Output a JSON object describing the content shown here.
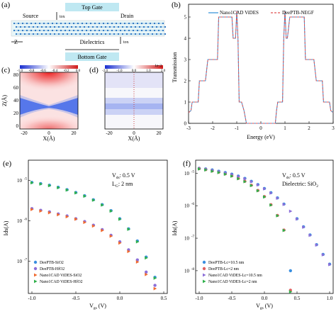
{
  "panels": {
    "a": {
      "label": "(a)",
      "top_gate": "Top Gate",
      "source": "Source",
      "drain": "Drain",
      "tox_top": "tox",
      "z_axis": "Z",
      "dielectrics": "Dielectrics",
      "tox_bottom": "tox",
      "lg": "L",
      "lg_sub": "G",
      "bottom_gate": "Bottom Gate"
    },
    "b": {
      "label": "(b)",
      "legend": [
        "Nano1CAD ViDES",
        "DeePTB-NEGF"
      ],
      "colors": {
        "vides": "#2e8fd8",
        "deeptb": "#e05050"
      },
      "ylabel": "Transmission",
      "xlabel": "Energy (eV)",
      "xticks": [
        "-3",
        "-2",
        "-1",
        "0",
        "1",
        "2",
        "3"
      ],
      "yticks": [
        "0",
        "1",
        "2",
        "3",
        "4",
        "5"
      ]
    },
    "c": {
      "label": "(c)",
      "colorbar_ticks": [
        "-1.0",
        "-0.8",
        "-0.6",
        "-0.4",
        "-0.2",
        "0.0"
      ],
      "ylabel": "Z(Å)",
      "xlabel": "X(Å)",
      "xticks": [
        "-20",
        "0",
        "20"
      ],
      "yticks": [
        "0",
        "20",
        "40",
        "60",
        "80"
      ]
    },
    "d": {
      "label": "(d)",
      "colorbar_ticks": [
        "-2.0",
        "-1.0",
        "0.0",
        "1.0",
        "2.0"
      ],
      "colorbar_exp": "1e-3",
      "xlabel": "X(Å)",
      "xticks": [
        "-20",
        "0",
        "20"
      ]
    },
    "e": {
      "label": "(e)",
      "ann1": "V",
      "ann1_sub": "ds",
      "ann1_val": ": 0.5 V",
      "ann2": "L",
      "ann2_sub": "G",
      "ann2_val": ": 2 nm",
      "ylabel": "Ids(A)",
      "xlabel": "V",
      "xlabel_sub": "gs",
      "xlabel_unit": " (V)",
      "xticks": [
        "-1.0",
        "-0.5",
        "0.0",
        "0.5"
      ],
      "yticks": [
        "10",
        "10",
        "10"
      ],
      "ytick_exps": [
        "-5",
        "-6",
        "-7"
      ],
      "legend": [
        "DeePTB-SiO2",
        "DeePTB-HfO2",
        "Nano1CAD ViDES-SiO2",
        "Nano1CAD ViDES-HfO2"
      ]
    },
    "f": {
      "label": "(f)",
      "ann1": "V",
      "ann1_sub": "ds",
      "ann1_val": ": 0.5 V",
      "ann2": "Dielectric: SiO",
      "ann2_sub": "2",
      "ylabel": "Ids(A)",
      "xlabel": "V",
      "xlabel_sub": "gs",
      "xlabel_unit": " (V)",
      "xticks": [
        "-1.0",
        "-0.5",
        "0.0",
        "0.5",
        "1.0"
      ],
      "yticks": [
        "10",
        "10",
        "10",
        "10"
      ],
      "ytick_exps": [
        "-5",
        "-6",
        "-7",
        "-8"
      ],
      "legend": [
        "DeePTB-Lc=10.5 nm",
        "DeePTB-Lc=2 nm",
        "Nano1CAD ViDES-Lc=10.5 nm",
        "Nano1CAD ViDES-Lc=2 nm"
      ]
    }
  },
  "chart_data": [
    {
      "type": "line",
      "panel": "b",
      "xlabel": "Energy (eV)",
      "ylabel": "Transmission",
      "xlim": [
        -3,
        3
      ],
      "ylim": [
        0,
        5.6
      ],
      "series": [
        {
          "name": "Nano1CAD ViDES",
          "x": [
            -3.0,
            -2.9,
            -2.85,
            -2.8,
            -2.6,
            -2.55,
            -2.3,
            -2.2,
            -1.8,
            -1.75,
            -1.5,
            -1.45,
            -1.2,
            -1.15,
            -1.05,
            -1.0,
            -0.95,
            -0.9,
            -0.8,
            -0.7,
            -0.6,
            0.6,
            0.65,
            0.7,
            0.9,
            0.95,
            1.0,
            1.05,
            1.1,
            1.2,
            1.5,
            1.55,
            1.8,
            1.85,
            2.2,
            2.3,
            2.55,
            2.6,
            2.8,
            2.85,
            2.9,
            3.0
          ],
          "y": [
            0.5,
            0.6,
            1.0,
            1.0,
            1.0,
            2.0,
            2.0,
            3.0,
            3.0,
            5.0,
            5.0,
            5.0,
            5.0,
            4.0,
            4.0,
            5.3,
            4.0,
            1.0,
            1.0,
            0.6,
            0.0,
            0.0,
            0.6,
            1.0,
            1.0,
            4.0,
            5.3,
            4.0,
            4.0,
            5.0,
            5.0,
            5.0,
            5.0,
            3.0,
            3.0,
            2.0,
            2.0,
            1.0,
            1.0,
            1.0,
            0.6,
            0.5
          ]
        },
        {
          "name": "DeePTB-NEGF",
          "x": [
            -3.0,
            -2.9,
            -2.85,
            -2.8,
            -2.6,
            -2.55,
            -2.3,
            -2.2,
            -1.8,
            -1.75,
            -1.5,
            -1.45,
            -1.2,
            -1.15,
            -1.05,
            -1.0,
            -0.95,
            -0.9,
            -0.8,
            -0.7,
            -0.6,
            0.6,
            0.65,
            0.7,
            0.9,
            0.95,
            1.0,
            1.05,
            1.1,
            1.2,
            1.5,
            1.55,
            1.8,
            1.85,
            2.2,
            2.3,
            2.55,
            2.6,
            2.8,
            2.85,
            2.9,
            3.0
          ],
          "y": [
            0.5,
            0.6,
            1.0,
            1.0,
            1.0,
            2.0,
            2.0,
            3.0,
            3.0,
            5.0,
            5.0,
            5.0,
            5.0,
            4.0,
            4.0,
            5.3,
            4.0,
            1.0,
            1.0,
            0.6,
            0.0,
            0.0,
            0.6,
            1.0,
            1.0,
            4.0,
            5.3,
            4.0,
            4.0,
            5.0,
            5.0,
            5.0,
            5.0,
            3.0,
            3.0,
            2.0,
            2.0,
            1.0,
            1.0,
            1.0,
            0.6,
            0.5
          ]
        }
      ]
    },
    {
      "type": "scatter",
      "panel": "e",
      "xlabel": "Vgs (V)",
      "ylabel": "Ids(A)",
      "xlim": [
        -1.0,
        0.5
      ],
      "ylog": true,
      "ylim_exp": [
        -7.8,
        -4.5
      ],
      "series": [
        {
          "name": "DeePTB-SiO2",
          "color": "#3a8fe0",
          "marker": "circle",
          "x": [
            -1.0,
            -0.9,
            -0.8,
            -0.7,
            -0.6,
            -0.5,
            -0.4,
            -0.3,
            -0.2,
            -0.1,
            0.0,
            0.1,
            0.2,
            0.3,
            0.4
          ],
          "yexp": [
            -5.05,
            -5.08,
            -5.12,
            -5.17,
            -5.23,
            -5.3,
            -5.38,
            -5.48,
            -5.6,
            -5.75,
            -5.95,
            -6.2,
            -6.5,
            -6.9,
            -7.4
          ]
        },
        {
          "name": "DeePTB-HfO2",
          "color": "#8c6fd8",
          "marker": "circle",
          "x": [
            -1.0,
            -0.9,
            -0.8,
            -0.7,
            -0.6,
            -0.5,
            -0.4,
            -0.3,
            -0.2,
            -0.1,
            0.0,
            0.1,
            0.2,
            0.3,
            0.4
          ],
          "yexp": [
            -5.7,
            -5.74,
            -5.78,
            -5.83,
            -5.88,
            -5.95,
            -6.02,
            -6.11,
            -6.22,
            -6.36,
            -6.52,
            -6.72,
            -6.97,
            -7.27,
            -7.6
          ]
        },
        {
          "name": "Nano1CAD ViDES-SiO2",
          "color": "#f06a30",
          "marker": "triangle-right",
          "x": [
            -1.0,
            -0.9,
            -0.8,
            -0.7,
            -0.6,
            -0.5,
            -0.4,
            -0.3,
            -0.2,
            -0.1,
            0.0,
            0.1,
            0.2,
            0.3,
            0.4
          ],
          "yexp": [
            -5.72,
            -5.76,
            -5.8,
            -5.85,
            -5.9,
            -5.96,
            -6.04,
            -6.13,
            -6.24,
            -6.38,
            -6.55,
            -6.76,
            -7.02,
            -7.33,
            -7.68
          ]
        },
        {
          "name": "Nano1CAD ViDES-HfO2",
          "color": "#2fb04a",
          "marker": "triangle-right",
          "x": [
            -1.0,
            -0.9,
            -0.8,
            -0.7,
            -0.6,
            -0.5,
            -0.4,
            -0.3,
            -0.2,
            -0.1,
            0.0,
            0.1,
            0.2,
            0.3,
            0.4
          ],
          "yexp": [
            -5.06,
            -5.09,
            -5.13,
            -5.18,
            -5.24,
            -5.31,
            -5.39,
            -5.49,
            -5.61,
            -5.76,
            -5.96,
            -6.21,
            -6.52,
            -6.92,
            -7.42
          ]
        }
      ]
    },
    {
      "type": "scatter",
      "panel": "f",
      "xlabel": "Vgs (V)",
      "ylabel": "Ids(A)",
      "xlim": [
        -1.0,
        1.0
      ],
      "ylog": true,
      "ylim_exp": [
        -8.7,
        -4.6
      ],
      "series": [
        {
          "name": "DeePTB-Lc=10.5 nm",
          "color": "#3a8fe0",
          "marker": "circle",
          "x": [
            -1.0,
            -0.9,
            -0.8,
            -0.7,
            -0.6,
            -0.5,
            -0.4,
            -0.3,
            -0.2,
            -0.1,
            0.0,
            0.1,
            0.2,
            0.3,
            0.4,
            0.5,
            0.6,
            0.7,
            0.8,
            0.9,
            1.0
          ],
          "yexp": [
            -4.85,
            -4.87,
            -4.9,
            -4.94,
            -4.98,
            -5.03,
            -5.09,
            -5.16,
            -5.25,
            -5.35,
            -5.47,
            -5.6,
            -5.76,
            -5.95,
            -8.0,
            -6.4,
            -6.65,
            -6.9,
            -7.2,
            -7.5,
            -7.8
          ]
        },
        {
          "name": "DeePTB-Lc=2 nm",
          "color": "#e06060",
          "marker": "circle",
          "x": [
            -1.0,
            -0.9,
            -0.8,
            -0.7,
            -0.6,
            -0.5,
            -0.4,
            -0.3,
            -0.2,
            -0.1,
            0.0,
            0.1,
            0.2,
            0.3,
            0.4
          ],
          "yexp": [
            -4.86,
            -4.89,
            -4.93,
            -4.97,
            -5.02,
            -5.08,
            -5.16,
            -5.25,
            -5.37,
            -5.53,
            -5.72,
            -5.97,
            -6.3,
            -6.75,
            -8.6
          ]
        },
        {
          "name": "Nano1CAD ViDES-Lc=10.5 nm",
          "color": "#8c6fd8",
          "marker": "triangle-right",
          "x": [
            -1.0,
            -0.9,
            -0.8,
            -0.7,
            -0.6,
            -0.5,
            -0.4,
            -0.3,
            -0.2,
            -0.1,
            0.0,
            0.1,
            0.2,
            0.3,
            0.4,
            0.5,
            0.6,
            0.7,
            0.8,
            0.9,
            1.0
          ],
          "yexp": [
            -4.86,
            -4.88,
            -4.91,
            -4.95,
            -4.99,
            -5.04,
            -5.1,
            -5.17,
            -5.26,
            -5.36,
            -5.48,
            -5.61,
            -5.77,
            -5.96,
            -6.17,
            -6.41,
            -6.66,
            -6.91,
            -7.21,
            -7.51,
            -7.81
          ]
        },
        {
          "name": "Nano1CAD ViDES-Lc=2 nm",
          "color": "#2fb04a",
          "marker": "triangle-right",
          "x": [
            -1.0,
            -0.9,
            -0.8,
            -0.7,
            -0.6,
            -0.5,
            -0.4,
            -0.3,
            -0.2,
            -0.1,
            0.0,
            0.1,
            0.2,
            0.3,
            0.4
          ],
          "yexp": [
            -4.87,
            -4.9,
            -4.94,
            -4.98,
            -5.03,
            -5.09,
            -5.17,
            -5.26,
            -5.38,
            -5.54,
            -5.73,
            -5.98,
            -6.31,
            -6.76,
            -8.65
          ]
        }
      ]
    }
  ]
}
